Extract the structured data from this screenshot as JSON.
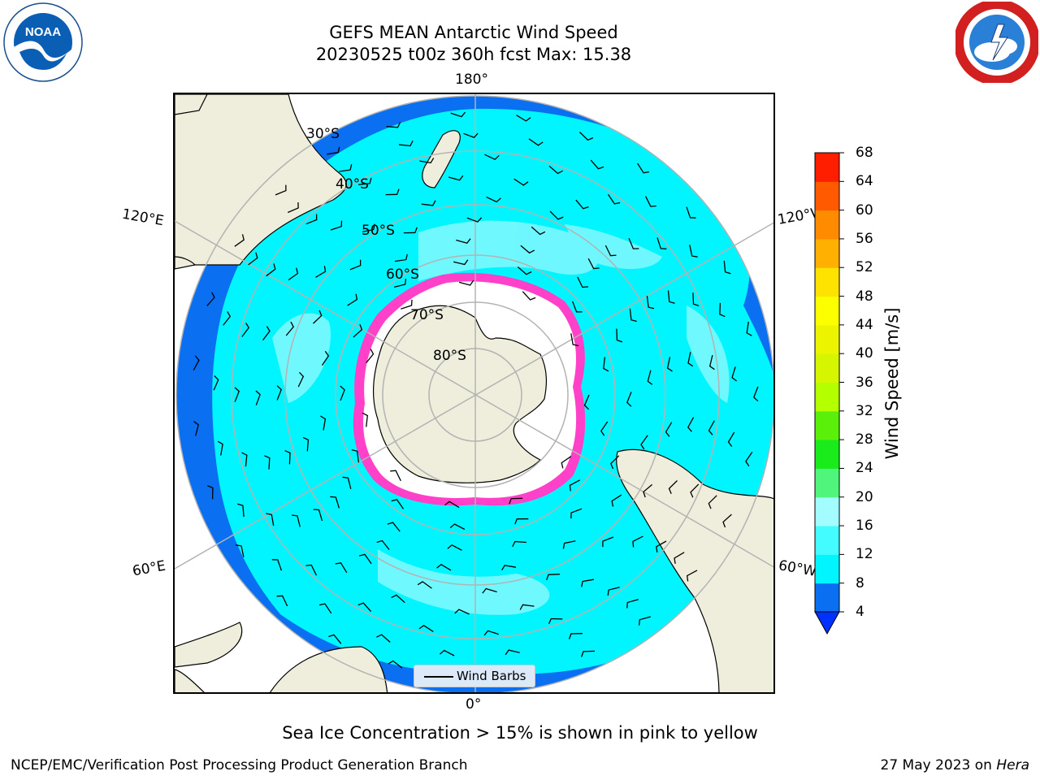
{
  "header": {
    "title_line1": "GEFS MEAN Antarctic Wind Speed",
    "title_line2": "20230525 t00z 360h fcst   Max: 15.38"
  },
  "logos": {
    "noaa": {
      "icon": "noaa-logo",
      "text": "NOAA",
      "color": "#0a5fb4"
    },
    "nws": {
      "icon": "nws-logo",
      "color": "#d21f1f"
    }
  },
  "map": {
    "projection": "south-polar-stereographic",
    "longitude_labels": {
      "top": "180°",
      "bottom": "0°",
      "upper_left": "120°E",
      "upper_right": "120°W",
      "lower_left": "60°E",
      "lower_right": "60°W"
    },
    "latitude_labels": [
      "30°S",
      "40°S",
      "50°S",
      "60°S",
      "70°S",
      "80°S"
    ],
    "legend_label": "Wind Barbs",
    "colors": {
      "ocean_low": "#0a6ff0",
      "ocean_mid": "#00f5ff",
      "ocean_high": "#7cf8ff",
      "land": "#efeedc",
      "sea_ice_edge": "#ff40c8",
      "sea_ice_fill": "#ffffff",
      "gridline": "#b3b3b3"
    }
  },
  "colorbar": {
    "label": "Wind Speed [m/s]",
    "ticks": [
      "68",
      "64",
      "60",
      "56",
      "52",
      "48",
      "44",
      "40",
      "36",
      "32",
      "28",
      "24",
      "20",
      "16",
      "12",
      "8",
      "4"
    ],
    "colors_bottom_to_top": [
      "#0a6ff0",
      "#00f5ff",
      "#43fcff",
      "#a3fcff",
      "#50f67c",
      "#1aeb1a",
      "#5af00a",
      "#b4ff00",
      "#d6f500",
      "#ecf400",
      "#fbff00",
      "#ffe300",
      "#ffb000",
      "#ff8c00",
      "#ff5a00",
      "#ff1e00"
    ],
    "extend_color": "#0032ff"
  },
  "caption": "Sea Ice Concentration > 15% is shown in pink to yellow",
  "footer": {
    "left": "NCEP/EMC/Verification Post Processing Product Generation Branch",
    "right_date": "27 May 2023 on ",
    "right_machine": "Hera"
  }
}
